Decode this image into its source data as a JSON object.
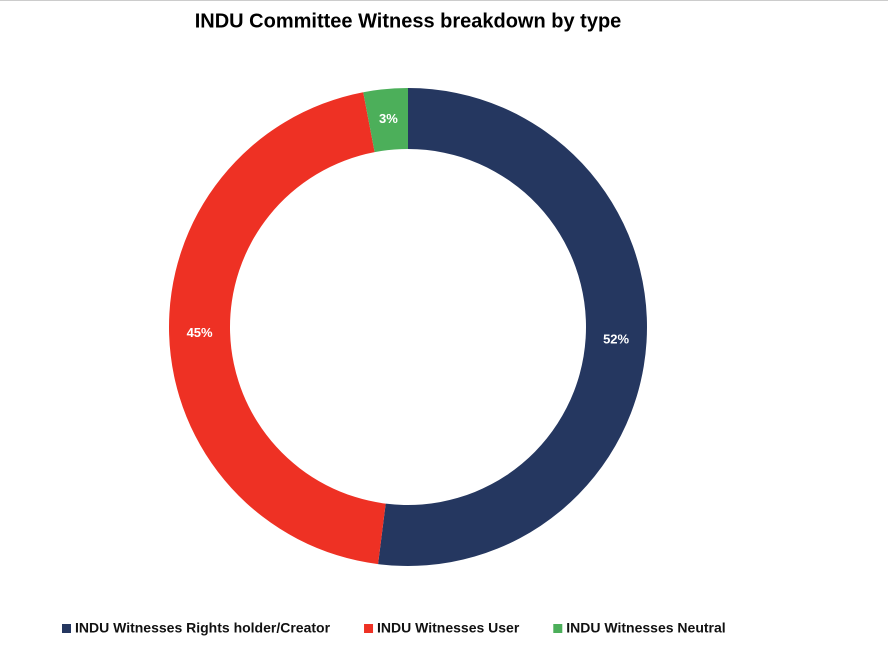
{
  "chart_data": {
    "type": "donut",
    "title": "INDU Committee Witness breakdown by type",
    "categories": [
      "INDU Witnesses Rights holder/Creator",
      "INDU Witnesses User",
      "INDU Witnesses Neutral"
    ],
    "values": [
      52,
      45,
      3
    ],
    "value_labels": [
      "52%",
      "45%",
      "3%"
    ],
    "colors": [
      "#253760",
      "#ee3124",
      "#4caf5a"
    ],
    "legend": "bottom"
  }
}
